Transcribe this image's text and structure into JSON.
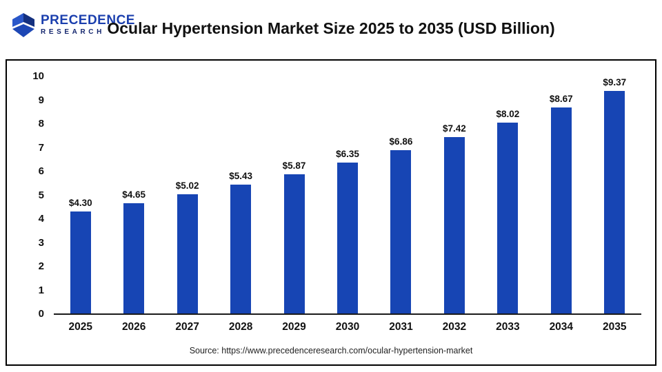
{
  "header": {
    "logo": {
      "line1": "PRECEDENCE",
      "line2": "RESEARCH"
    },
    "title": "Ocular Hypertension Market Size 2025 to 2035 (USD Billion)"
  },
  "chart_data": {
    "type": "bar",
    "title": "Ocular Hypertension Market Size 2025 to 2035 (USD Billion)",
    "categories": [
      "2025",
      "2026",
      "2027",
      "2028",
      "2029",
      "2030",
      "2031",
      "2032",
      "2033",
      "2034",
      "2035"
    ],
    "values": [
      4.3,
      4.65,
      5.02,
      5.43,
      5.87,
      6.35,
      6.86,
      7.42,
      8.02,
      8.67,
      9.37
    ],
    "value_labels": [
      "$4.30",
      "$4.65",
      "$5.02",
      "$5.43",
      "$5.87",
      "$6.35",
      "$6.86",
      "$7.42",
      "$8.02",
      "$8.67",
      "$9.37"
    ],
    "xlabel": "",
    "ylabel": "",
    "ylim": [
      0,
      10
    ],
    "yticks": [
      0,
      1,
      2,
      3,
      4,
      5,
      6,
      7,
      8,
      9,
      10
    ],
    "bar_color": "#1745B4",
    "grid": false,
    "legend": "none"
  },
  "footer": {
    "source": "Source: https://www.precedenceresearch.com/ocular-hypertension-market"
  }
}
